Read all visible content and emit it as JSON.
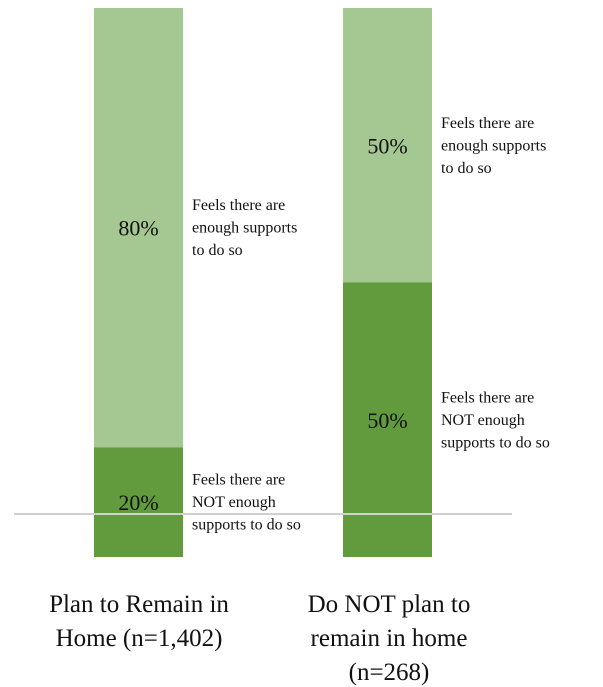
{
  "chart_data": {
    "type": "bar",
    "stacked": true,
    "categories": [
      [
        "Plan to Remain in",
        "Home (n=1,402)"
      ],
      [
        "Do NOT plan to",
        "remain in home",
        "(n=268)"
      ]
    ],
    "series": [
      {
        "key": "not_enough",
        "values": [
          20,
          50
        ],
        "data_labels": [
          "20%",
          "50%"
        ],
        "side_labels": [
          [
            "Feels there are",
            "NOT enough",
            "supports to do so"
          ],
          [
            "Feels there are",
            "NOT enough",
            "supports to do so"
          ]
        ]
      },
      {
        "key": "enough",
        "values": [
          80,
          50
        ],
        "data_labels": [
          "80%",
          "50%"
        ],
        "side_labels": [
          [
            "Feels there are",
            "enough supports",
            "to do so"
          ],
          [
            "Feels there are",
            "enough supports",
            "to do so"
          ]
        ]
      }
    ],
    "ylim": [
      0,
      100
    ],
    "grid": false,
    "legend": "none",
    "colors": {
      "not_enough": "#629a3e",
      "enough": "#a5c893",
      "baseline": "#d0d0d0"
    }
  }
}
